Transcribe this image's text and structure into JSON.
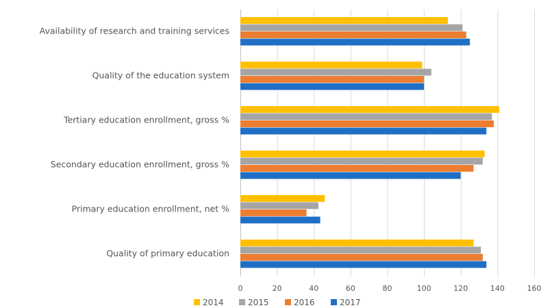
{
  "chart_data": {
    "type": "bar",
    "orientation": "horizontal",
    "title": "",
    "xlabel": "",
    "ylabel": "",
    "categories": [
      "Availability of research and training services",
      "Quality of the education system",
      "Tertiary education enrollment, gross %",
      "Secondary education enrollment, gross %",
      "Primary education enrollment, net %",
      "Quality of primary education"
    ],
    "series": [
      {
        "name": "2014",
        "color": "#FFC000",
        "values": [
          113,
          99,
          141,
          133,
          46,
          127
        ]
      },
      {
        "name": "2015",
        "color": "#A5A5A5",
        "values": [
          121,
          104,
          137,
          132,
          42.5,
          131
        ]
      },
      {
        "name": "2016",
        "color": "#ED7D31",
        "values": [
          123,
          100,
          138,
          127,
          36,
          132
        ]
      },
      {
        "name": "2017",
        "color": "#1F6FC5",
        "values": [
          125,
          100,
          134,
          120,
          43.5,
          134
        ]
      }
    ],
    "xlim": [
      0,
      160
    ],
    "xticks": [
      0,
      20,
      40,
      60,
      80,
      100,
      120,
      140,
      160
    ],
    "grid": "vertical",
    "legend": "bottom"
  }
}
